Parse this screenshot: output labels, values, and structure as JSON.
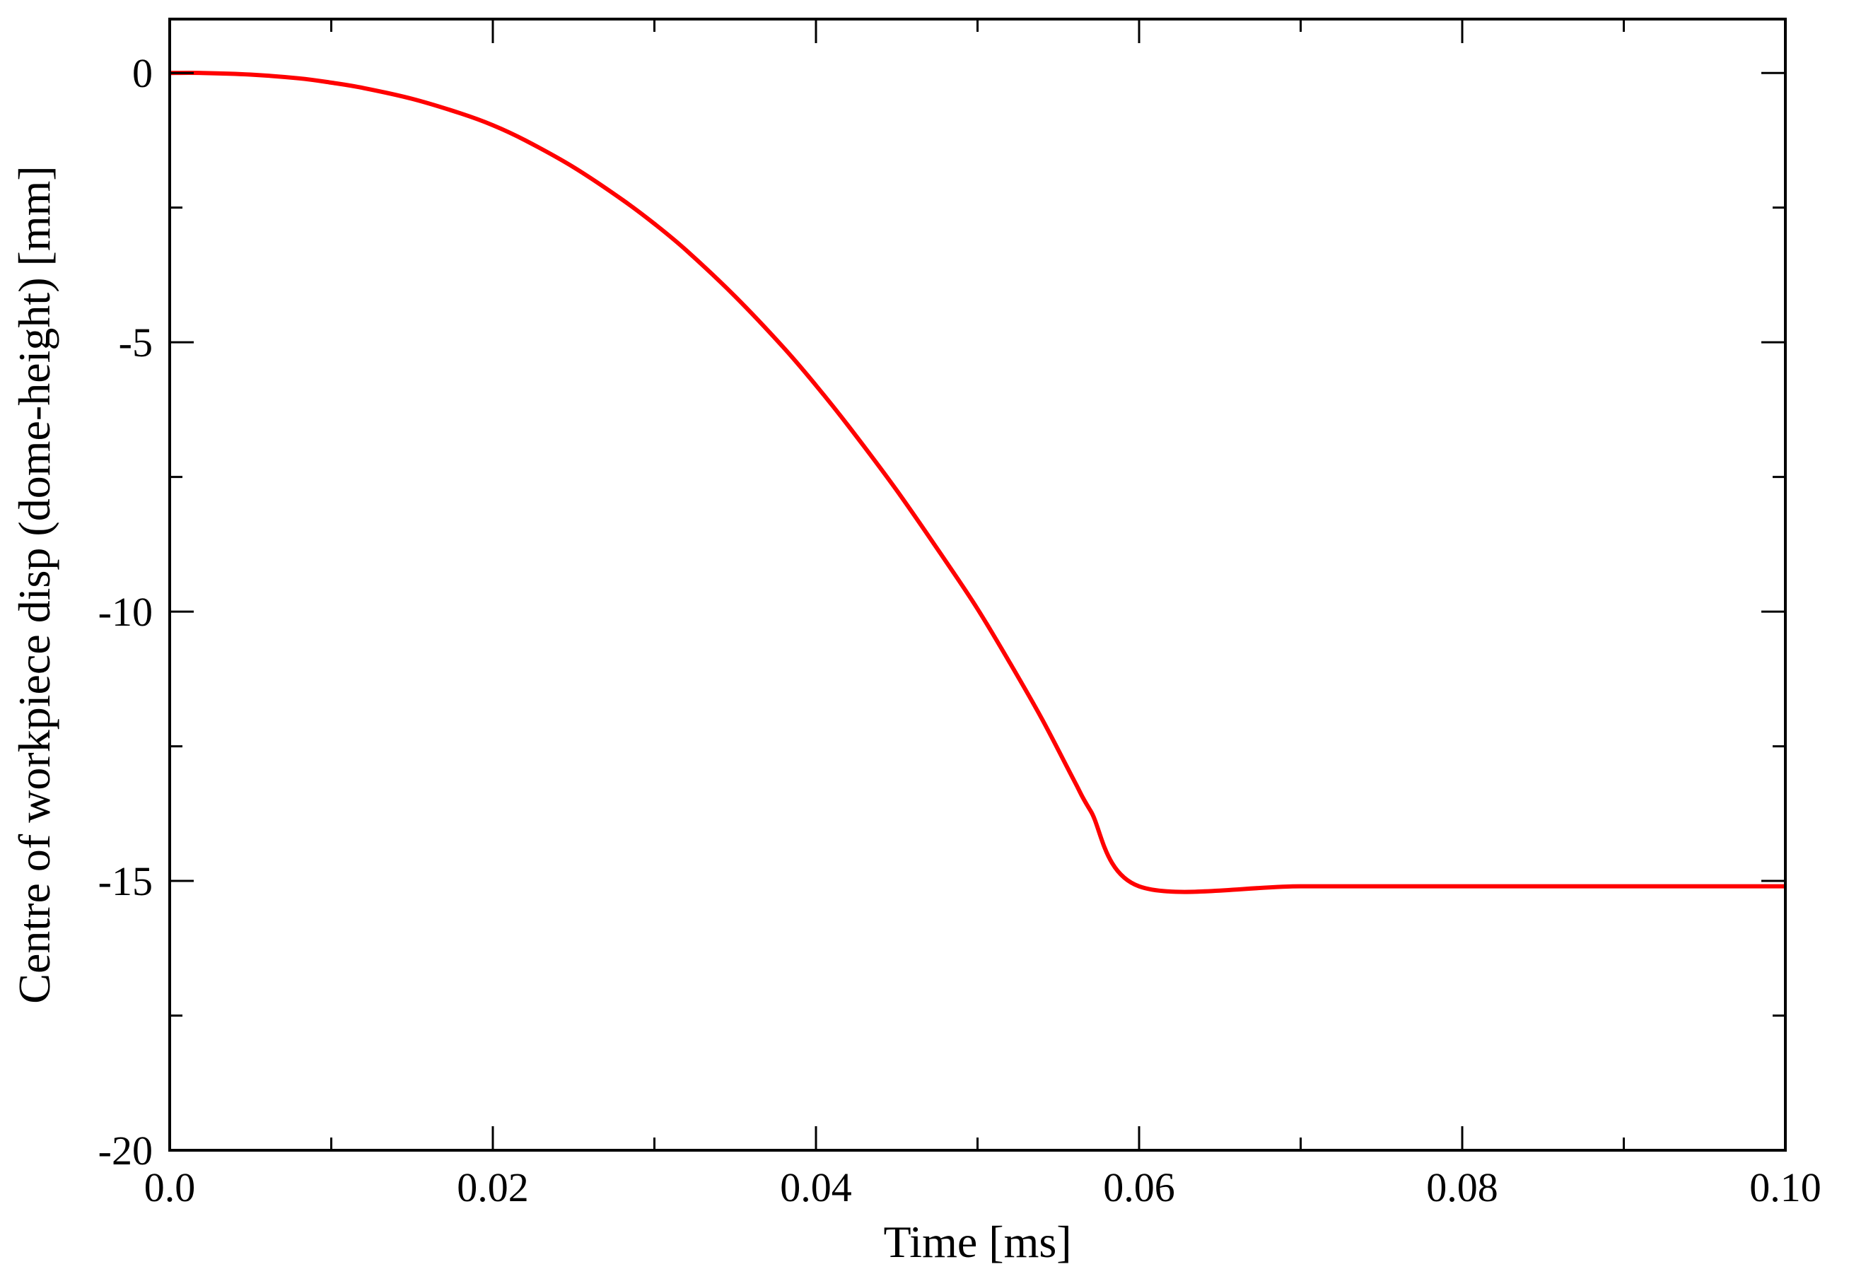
{
  "chart_data": {
    "type": "line",
    "title": "",
    "xlabel": "Time [ms]",
    "ylabel": "Centre of workpiece disp (dome-height) [mm]",
    "xlim": [
      0.0,
      0.1
    ],
    "ylim": [
      -20,
      1
    ],
    "x_major_ticks": [
      0.0,
      0.02,
      0.04,
      0.06,
      0.08,
      0.1
    ],
    "x_tick_labels": [
      "0.0",
      "0.02",
      "0.04",
      "0.06",
      "0.08",
      "0.10"
    ],
    "x_minor_ticks": [
      0.01,
      0.03,
      0.05,
      0.07,
      0.09
    ],
    "y_major_ticks": [
      0,
      -5,
      -10,
      -15,
      -20
    ],
    "y_tick_labels": [
      "0",
      "-5",
      "-10",
      "-15",
      "-20"
    ],
    "y_minor_ticks": [
      -2.5,
      -7.5,
      -12.5,
      -17.5
    ],
    "grid": false,
    "legend": "none",
    "series": [
      {
        "color": "#ff0000",
        "x": [
          0.0,
          0.002,
          0.005,
          0.008,
          0.01,
          0.012,
          0.015,
          0.018,
          0.02,
          0.022,
          0.025,
          0.028,
          0.03,
          0.032,
          0.035,
          0.038,
          0.04,
          0.042,
          0.045,
          0.048,
          0.05,
          0.052,
          0.054,
          0.056,
          0.057,
          0.06,
          0.07,
          0.08,
          0.09,
          0.1
        ],
        "y": [
          0.0,
          0.0,
          -0.03,
          -0.1,
          -0.18,
          -0.28,
          -0.48,
          -0.75,
          -0.97,
          -1.25,
          -1.75,
          -2.35,
          -2.8,
          -3.3,
          -4.15,
          -5.1,
          -5.8,
          -6.55,
          -7.75,
          -9.05,
          -9.95,
          -10.95,
          -12.0,
          -13.15,
          -13.7,
          -15.1,
          -15.1,
          -15.1,
          -15.1,
          -15.1
        ],
        "line_width": 6
      }
    ]
  }
}
